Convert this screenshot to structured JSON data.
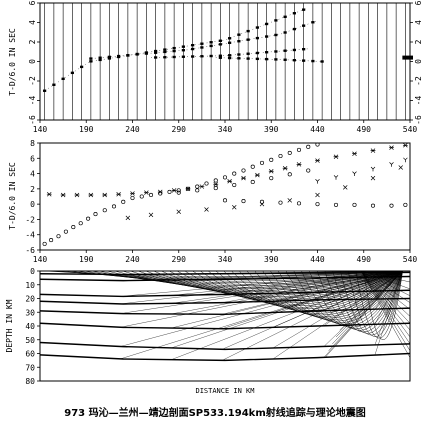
{
  "caption": "973 玛沁—兰州—靖边剖面SP533.194km射线追踪与理论地震图",
  "chart_data": [
    {
      "type": "seismogram",
      "ylabel": "T-D/6.0 IN SEC",
      "xlim": [
        140,
        540
      ],
      "ylim": [
        -6,
        6
      ],
      "xticks": [
        "140",
        "190",
        "240",
        "290",
        "340",
        "390",
        "440",
        "490",
        "540"
      ],
      "yticks_left": [
        "-6",
        "-4",
        "-2",
        "0",
        "2",
        "4",
        "6"
      ],
      "yticks_right": [
        "-6",
        "-4",
        "-2",
        "0",
        "2",
        "4",
        "6"
      ],
      "traces_x": [
        145,
        155,
        165,
        175,
        185,
        195,
        205,
        215,
        225,
        235,
        245,
        255,
        265,
        275,
        285,
        295,
        305,
        315,
        325,
        335,
        345,
        355,
        365,
        375,
        385,
        395,
        405,
        415,
        425,
        435,
        445,
        455,
        465,
        475,
        485,
        495,
        505,
        515,
        525,
        535
      ],
      "phases": [
        {
          "x": [
            145,
            194,
            340,
            430
          ],
          "y": [
            -3.0,
            0.0,
            2.2,
            5.5
          ]
        },
        {
          "x": [
            195,
            300,
            400,
            440
          ],
          "y": [
            0.3,
            1.2,
            2.8,
            4.2
          ]
        },
        {
          "x": [
            260,
            340,
            430
          ],
          "y": [
            0.4,
            0.6,
            1.3
          ]
        },
        {
          "x": [
            330,
            400,
            445
          ],
          "y": [
            0.4,
            0.2,
            0.0
          ]
        }
      ],
      "marked_phases": [
        {
          "x": [
            535,
            540
          ],
          "y": [
            0.4,
            0.4
          ]
        }
      ]
    },
    {
      "type": "scatter",
      "ylabel": "T-D/6.0 IN SEC",
      "xlim": [
        140,
        540
      ],
      "ylim": [
        -6,
        8
      ],
      "xticks": [
        "140",
        "190",
        "240",
        "290",
        "340",
        "390",
        "440",
        "490",
        "540"
      ],
      "yticks": [
        "-6",
        "-4",
        "-2",
        "0",
        "2",
        "4",
        "6",
        "8"
      ],
      "series": [
        {
          "marker": "circle",
          "x": [
            145,
            152,
            160,
            168,
            176,
            184,
            192,
            200,
            210,
            220,
            230,
            240,
            250,
            260,
            270,
            280,
            290,
            300,
            310,
            320,
            330,
            340,
            350,
            360,
            370,
            380,
            390,
            400,
            410,
            420,
            430,
            440
          ],
          "y": [
            -5.2,
            -4.7,
            -4.2,
            -3.6,
            -3.0,
            -2.5,
            -1.9,
            -1.3,
            -0.8,
            -0.3,
            0.3,
            0.8,
            1.0,
            1.2,
            1.4,
            1.6,
            1.8,
            2.0,
            2.3,
            2.7,
            3.1,
            3.5,
            4.0,
            4.4,
            4.9,
            5.4,
            5.8,
            6.3,
            6.7,
            7.1,
            7.5,
            7.8
          ]
        },
        {
          "marker": "circle",
          "x": [
            340,
            360,
            380,
            400,
            420,
            440,
            460,
            480,
            500,
            520,
            535
          ],
          "y": [
            0.5,
            0.4,
            0.3,
            0.2,
            0.1,
            0.0,
            -0.1,
            -0.1,
            -0.2,
            -0.2,
            -0.1
          ]
        },
        {
          "marker": "circle",
          "x": [
            290,
            310,
            330,
            350,
            370,
            390,
            410,
            430
          ],
          "y": [
            1.5,
            1.8,
            2.1,
            2.5,
            2.9,
            3.4,
            3.9,
            4.4
          ]
        },
        {
          "marker": "star",
          "x": [
            150,
            165,
            180,
            195,
            210,
            225,
            240,
            255,
            270,
            285,
            300,
            315,
            330,
            345,
            360,
            375,
            390,
            405,
            420,
            440,
            460,
            480,
            500,
            520,
            535
          ],
          "y": [
            1.3,
            1.2,
            1.2,
            1.2,
            1.2,
            1.3,
            1.4,
            1.5,
            1.6,
            1.8,
            2.0,
            2.3,
            2.6,
            3.0,
            3.4,
            3.8,
            4.3,
            4.7,
            5.2,
            5.7,
            6.2,
            6.6,
            7.0,
            7.4,
            7.7
          ]
        },
        {
          "marker": "x",
          "x": [
            235,
            260,
            290,
            320,
            350,
            380,
            410,
            440,
            470,
            500,
            530
          ],
          "y": [
            -1.8,
            -1.4,
            -1.0,
            -0.7,
            -0.4,
            0.0,
            0.5,
            1.2,
            2.2,
            3.4,
            4.8
          ]
        },
        {
          "marker": "y",
          "x": [
            440,
            460,
            480,
            500,
            520,
            535
          ],
          "y": [
            3.0,
            3.5,
            4.0,
            4.6,
            5.2,
            5.8
          ]
        }
      ]
    },
    {
      "type": "raypath",
      "ylabel": "DEPTH IN KM",
      "xlabel": "DISTANCE IN KM",
      "xlim": [
        140,
        540
      ],
      "ylim": [
        0,
        80
      ],
      "xticks": [
        "140",
        "190",
        "240",
        "290",
        "340",
        "390",
        "440",
        "490",
        "540"
      ],
      "yticks": [
        "0",
        "10",
        "20",
        "30",
        "40",
        "50",
        "60",
        "70",
        "80"
      ],
      "source_x": 532,
      "layers": [
        {
          "x": [
            140,
            230,
            340,
            440,
            540
          ],
          "y": [
            2.0,
            2.5,
            2.0,
            1.5,
            1.0
          ]
        },
        {
          "x": [
            140,
            230,
            340,
            440,
            540
          ],
          "y": [
            6.0,
            7.0,
            6.0,
            5.0,
            4.0
          ]
        },
        {
          "x": [
            140,
            230,
            340,
            440,
            540
          ],
          "y": [
            17.0,
            18.5,
            17.0,
            15.5,
            14.0
          ]
        },
        {
          "x": [
            140,
            230,
            340,
            440,
            540
          ],
          "y": [
            22.0,
            24.0,
            23.0,
            21.0,
            20.0
          ]
        },
        {
          "x": [
            140,
            230,
            340,
            440,
            540
          ],
          "y": [
            29.0,
            31.0,
            31.5,
            29.0,
            27.0
          ]
        },
        {
          "x": [
            140,
            230,
            340,
            440,
            540
          ],
          "y": [
            38.0,
            41.0,
            42.0,
            40.0,
            38.0
          ]
        },
        {
          "x": [
            140,
            230,
            340,
            440,
            540
          ],
          "y": [
            52.0,
            55.0,
            57.0,
            55.0,
            53.0
          ]
        },
        {
          "x": [
            140,
            230,
            340,
            440,
            540
          ],
          "y": [
            61.0,
            64.0,
            65.0,
            63.0,
            60.0
          ]
        }
      ]
    }
  ]
}
